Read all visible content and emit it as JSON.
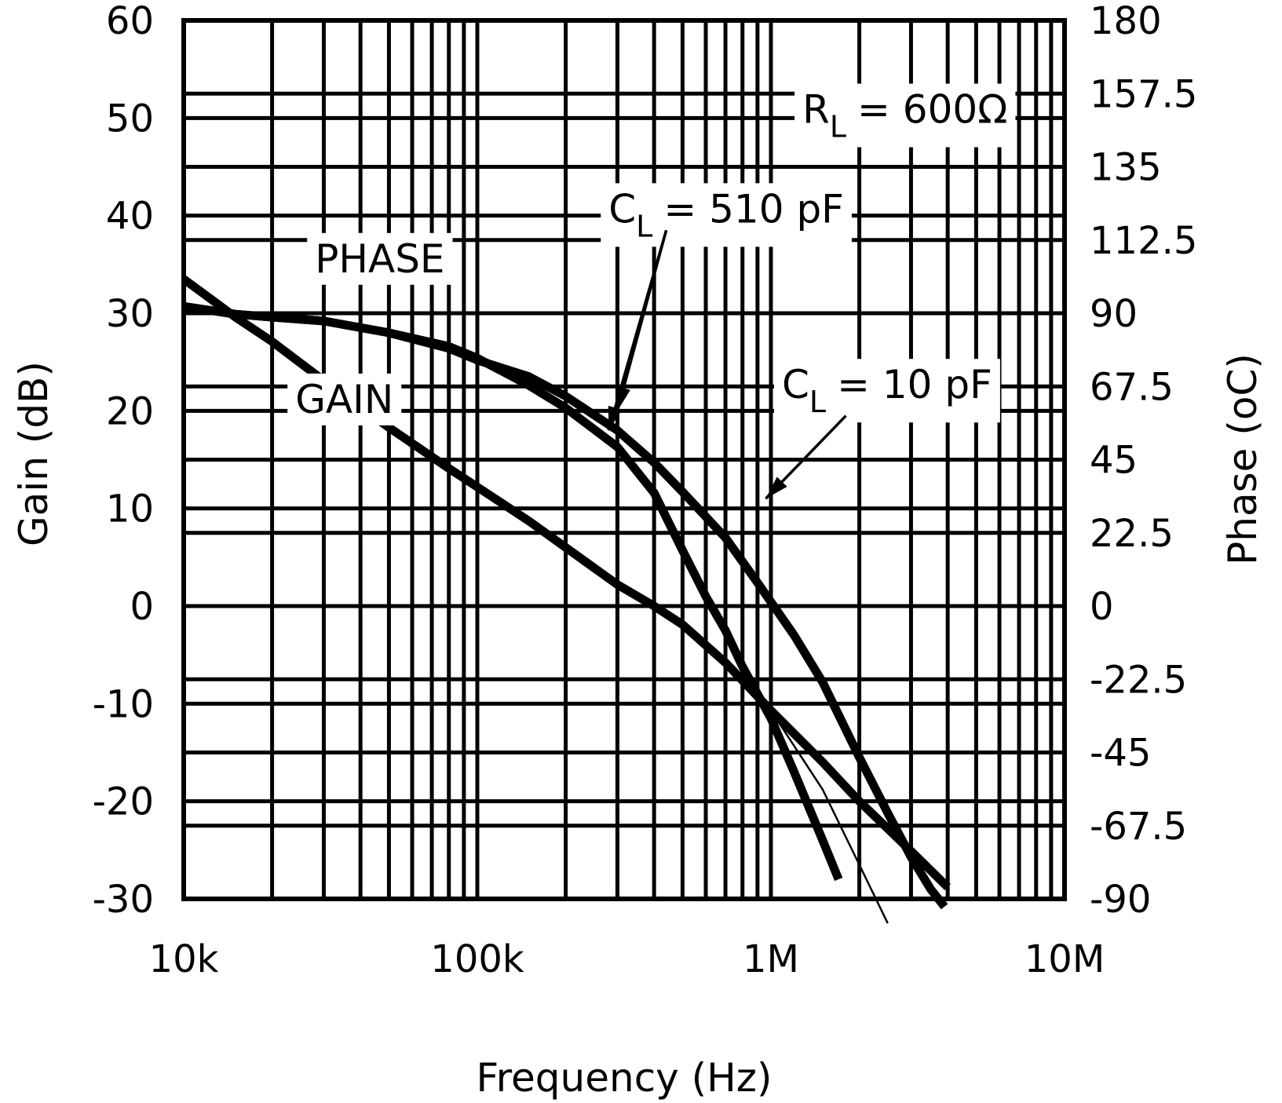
{
  "chart_data": {
    "type": "line",
    "x_scale": "log",
    "xlim": [
      10000,
      10000000
    ],
    "ylim": [
      -30,
      60
    ],
    "y2lim": [
      -90,
      180
    ],
    "xlabel": "Frequency (Hz)",
    "ylabel": "Gain (dB)",
    "y2label": "Phase (oC)",
    "grid": true,
    "x_ticks": [
      {
        "value": 10000,
        "label": "10k"
      },
      {
        "value": 100000,
        "label": "100k"
      },
      {
        "value": 1000000,
        "label": "1M"
      },
      {
        "value": 10000000,
        "label": "10M"
      }
    ],
    "y_ticks": [
      {
        "value": 60,
        "label": "60"
      },
      {
        "value": 50,
        "label": "50"
      },
      {
        "value": 40,
        "label": "40"
      },
      {
        "value": 30,
        "label": "30"
      },
      {
        "value": 20,
        "label": "20"
      },
      {
        "value": 10,
        "label": "10"
      },
      {
        "value": 0,
        "label": "0"
      },
      {
        "value": -10,
        "label": "-10"
      },
      {
        "value": -20,
        "label": "-20"
      },
      {
        "value": -30,
        "label": "-30"
      }
    ],
    "y2_ticks": [
      {
        "value": 180,
        "label": "180"
      },
      {
        "value": 157.5,
        "label": "157.5"
      },
      {
        "value": 135,
        "label": "135"
      },
      {
        "value": 112.5,
        "label": "112.5"
      },
      {
        "value": 90,
        "label": "90"
      },
      {
        "value": 67.5,
        "label": "67.5"
      },
      {
        "value": 45,
        "label": "45"
      },
      {
        "value": 22.5,
        "label": "22.5"
      },
      {
        "value": 0,
        "label": "0"
      },
      {
        "value": -22.5,
        "label": "-22.5"
      },
      {
        "value": -45,
        "label": "-45"
      },
      {
        "value": -67.5,
        "label": "-67.5"
      },
      {
        "value": -90,
        "label": "-90"
      }
    ],
    "series": [
      {
        "name": "PHASE",
        "axis": "y2",
        "points": [
          [
            10000,
            92.1
          ],
          [
            15000,
            89.7
          ],
          [
            20000,
            88.8
          ],
          [
            30000,
            87.6
          ],
          [
            50000,
            84.0
          ],
          [
            80000,
            79.2
          ],
          [
            100000,
            75.6
          ],
          [
            150000,
            70.5
          ],
          [
            200000,
            64.5
          ],
          [
            300000,
            54.0
          ],
          [
            400000,
            44.1
          ],
          [
            500000,
            35.1
          ],
          [
            700000,
            21.0
          ],
          [
            900000,
            7.2
          ],
          [
            1200000,
            -9.0
          ],
          [
            1500000,
            -23.4
          ],
          [
            2000000,
            -46.5
          ],
          [
            2500000,
            -63.6
          ],
          [
            3000000,
            -77.1
          ],
          [
            3500000,
            -87.0
          ],
          [
            3900000,
            -92.4
          ]
        ]
      },
      {
        "name": "PHASE",
        "axis": "y2",
        "points": [
          [
            10000,
            92.1
          ],
          [
            15000,
            89.7
          ],
          [
            20000,
            88.8
          ],
          [
            30000,
            87.6
          ],
          [
            50000,
            84.0
          ],
          [
            80000,
            79.8
          ],
          [
            100000,
            76.2
          ],
          [
            150000,
            67.8
          ],
          [
            200000,
            60.9
          ],
          [
            300000,
            48.9
          ],
          [
            400000,
            34.8
          ],
          [
            500000,
            17.1
          ],
          [
            600000,
            3.0
          ],
          [
            700000,
            -7.5
          ],
          [
            800000,
            -18.6
          ],
          [
            1000000,
            -34.5
          ],
          [
            1200000,
            -51.0
          ],
          [
            1500000,
            -72.0
          ],
          [
            1700000,
            -84.0
          ]
        ]
      },
      {
        "name": "GAIN",
        "axis": "y",
        "points": [
          [
            10000,
            33.5
          ],
          [
            15000,
            29.6
          ],
          [
            20000,
            27.1
          ],
          [
            30000,
            23.1
          ],
          [
            50000,
            18.3
          ],
          [
            80000,
            14.1
          ],
          [
            100000,
            12.2
          ],
          [
            150000,
            8.7
          ],
          [
            200000,
            6.0
          ],
          [
            300000,
            2.2
          ],
          [
            400000,
            0.0
          ],
          [
            500000,
            -1.9
          ],
          [
            700000,
            -5.8
          ],
          [
            1000000,
            -10.7
          ],
          [
            1500000,
            -16.0
          ],
          [
            2000000,
            -20.0
          ],
          [
            3000000,
            -25.1
          ],
          [
            4000000,
            -28.8
          ]
        ]
      },
      {
        "name": "GAIN",
        "axis": "y",
        "points": [
          [
            1000000,
            -10.7
          ],
          [
            1500000,
            -18.8
          ],
          [
            2000000,
            -26.5
          ],
          [
            2500000,
            -32.5
          ]
        ]
      }
    ],
    "annotations": [
      {
        "text": "R",
        "subscript": "L",
        "text_after": "= 600Ω",
        "x": 1280000,
        "y": 49.5
      },
      {
        "text": "C",
        "subscript": "L",
        "text_after": "= 510 pF",
        "x": 280000,
        "y": 39.3
      },
      {
        "text": "C",
        "subscript": "L",
        "text_after": "= 10 pF",
        "x": 1090000,
        "y": 21.3
      },
      {
        "text": "PHASE",
        "x": 28000,
        "y": 34.2
      },
      {
        "text": "GAIN",
        "x": 24000,
        "y": 19.8
      }
    ]
  }
}
